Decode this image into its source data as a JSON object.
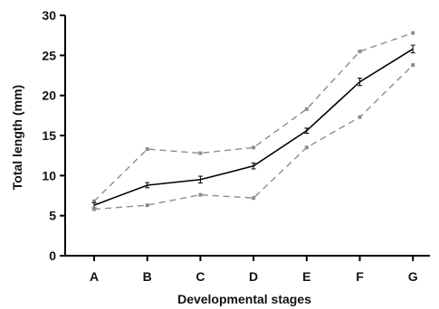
{
  "chart_data": {
    "type": "line",
    "title": "",
    "xlabel": "Developmental stages",
    "ylabel": "Total length (mm)",
    "categories": [
      "A",
      "B",
      "C",
      "D",
      "E",
      "F",
      "G"
    ],
    "ylim": [
      0,
      30
    ],
    "yticks": [
      0,
      5,
      10,
      15,
      20,
      25,
      30
    ],
    "grid": false,
    "series": [
      {
        "role": "upper",
        "style": "dashed",
        "color": "#8c8c8c",
        "values": [
          6.8,
          13.3,
          12.8,
          13.5,
          18.3,
          25.5,
          27.8
        ]
      },
      {
        "role": "mean",
        "style": "solid",
        "color": "#000000",
        "values": [
          6.3,
          8.8,
          9.5,
          11.2,
          15.6,
          21.7,
          25.8
        ],
        "error": [
          0.15,
          0.15,
          0.25,
          0.2,
          0.15,
          0.3,
          0.3
        ]
      },
      {
        "role": "lower",
        "style": "dashed",
        "color": "#8c8c8c",
        "values": [
          5.8,
          6.3,
          7.6,
          7.2,
          13.5,
          17.3,
          23.8
        ]
      }
    ]
  }
}
